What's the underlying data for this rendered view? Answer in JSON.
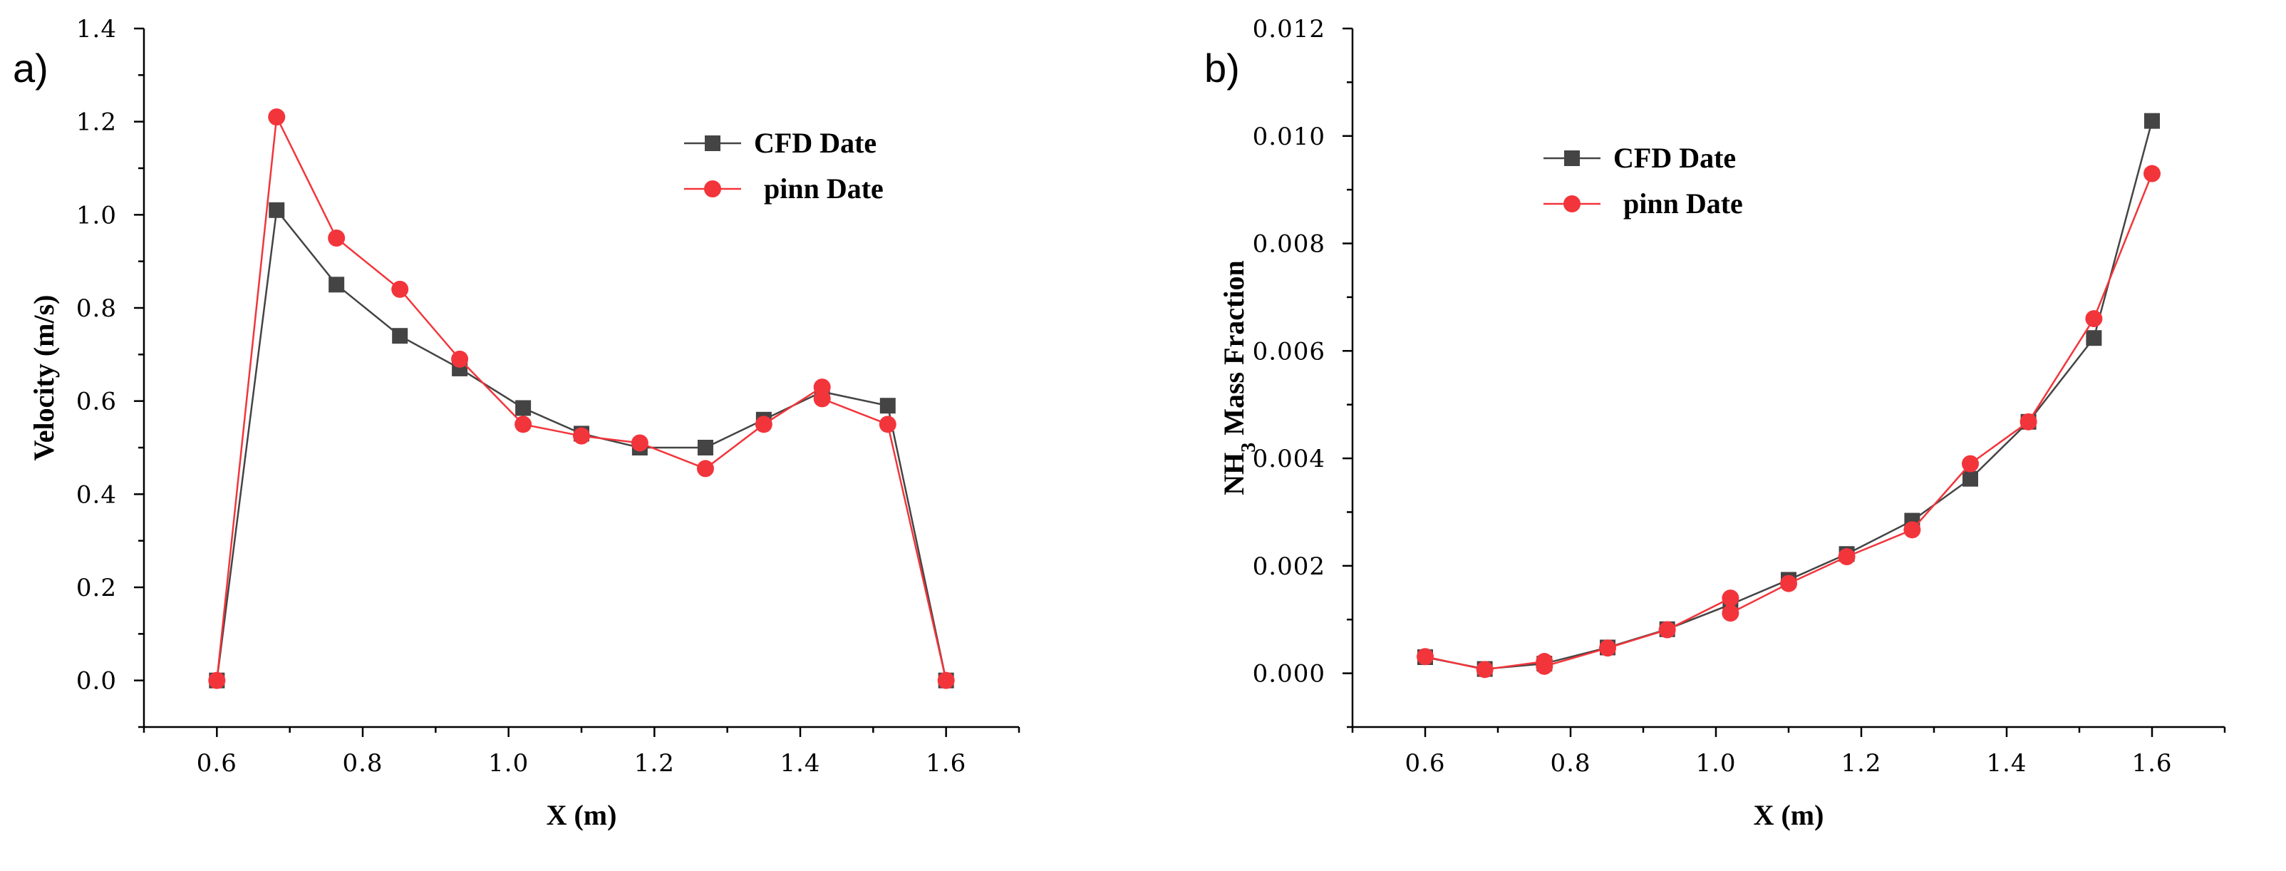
{
  "chart_data": [
    {
      "type": "line",
      "panel_label": "a)",
      "xlabel": "X (m)",
      "ylabel": "Velocity (m/s)",
      "xlim": [
        0.5,
        1.7
      ],
      "ylim": [
        -0.1,
        1.4
      ],
      "xticks": [
        "0.6",
        "0.8",
        "1.0",
        "1.2",
        "1.4",
        "1.6"
      ],
      "xtick_values": [
        0.6,
        0.8,
        1.0,
        1.2,
        1.4,
        1.6
      ],
      "yticks": [
        "0.0",
        "0.2",
        "0.4",
        "0.6",
        "0.8",
        "1.0",
        "1.2",
        "1.4"
      ],
      "ytick_values": [
        0.0,
        0.2,
        0.4,
        0.6,
        0.8,
        1.0,
        1.2,
        1.4
      ],
      "legend_position": "top-right",
      "series": [
        {
          "name": "CFD Date",
          "color": "#444444",
          "marker": "square",
          "x": [
            0.6,
            0.682,
            0.764,
            0.851,
            0.933,
            1.02,
            1.1,
            1.18,
            1.27,
            1.35,
            1.43,
            1.52,
            1.6
          ],
          "y": [
            0.0,
            1.01,
            0.85,
            0.74,
            0.67,
            0.585,
            0.53,
            0.5,
            0.5,
            0.56,
            0.62,
            0.59,
            0.0
          ]
        },
        {
          "name": "pinn Date",
          "color": "#f2353b",
          "marker": "circle",
          "x": [
            0.6,
            0.682,
            0.764,
            0.851,
            0.933,
            1.02,
            1.1,
            1.18,
            1.27,
            1.35,
            1.43,
            1.43,
            1.52,
            1.6
          ],
          "y": [
            0.0,
            1.21,
            0.95,
            0.84,
            0.69,
            0.55,
            0.525,
            0.51,
            0.455,
            0.55,
            0.63,
            0.605,
            0.55,
            0.0
          ]
        }
      ]
    },
    {
      "type": "line",
      "panel_label": "b)",
      "xlabel": "X (m)",
      "ylabel_main": "NH",
      "ylabel_sub": "3",
      "ylabel_rest": " Mass Fraction",
      "xlim": [
        0.5,
        1.7
      ],
      "ylim": [
        -0.001,
        0.012
      ],
      "xticks": [
        "0.6",
        "0.8",
        "1.0",
        "1.2",
        "1.4",
        "1.6"
      ],
      "xtick_values": [
        0.6,
        0.8,
        1.0,
        1.2,
        1.4,
        1.6
      ],
      "yticks": [
        "0.000",
        "0.002",
        "0.004",
        "0.006",
        "0.008",
        "0.010",
        "0.012"
      ],
      "ytick_values": [
        0.0,
        0.002,
        0.004,
        0.006,
        0.008,
        0.01,
        0.012
      ],
      "legend_position": "top-left",
      "series": [
        {
          "name": "CFD Date",
          "color": "#444444",
          "marker": "square",
          "x": [
            0.6,
            0.682,
            0.764,
            0.851,
            0.933,
            1.02,
            1.1,
            1.18,
            1.27,
            1.35,
            1.43,
            1.52,
            1.6
          ],
          "y": [
            0.0003,
            8e-05,
            0.00018,
            0.00048,
            0.00082,
            0.00128,
            0.00174,
            0.00222,
            0.00284,
            0.00362,
            0.00468,
            0.00624,
            0.01028
          ]
        },
        {
          "name": "pinn Date",
          "color": "#f2353b",
          "marker": "circle",
          "x": [
            0.6,
            0.682,
            0.764,
            0.764,
            0.851,
            0.933,
            1.02,
            1.02,
            1.1,
            1.18,
            1.27,
            1.35,
            1.43,
            1.52,
            1.6
          ],
          "y": [
            0.00031,
            7e-05,
            0.00022,
            0.00013,
            0.00047,
            0.00081,
            0.0014,
            0.00112,
            0.00167,
            0.00217,
            0.00267,
            0.0039,
            0.00468,
            0.0066,
            0.0093
          ]
        }
      ]
    }
  ]
}
